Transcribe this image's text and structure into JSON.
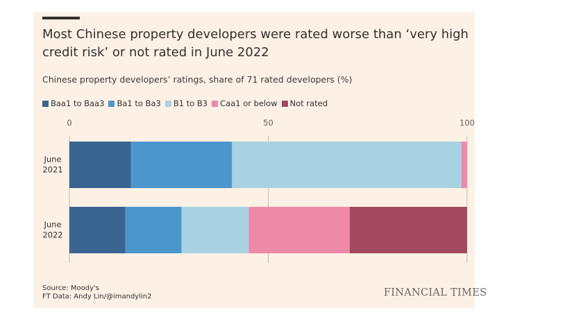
{
  "chart_data": {
    "type": "bar",
    "orientation": "horizontal",
    "stacked": true,
    "title": "Most Chinese property developers were rated worse than ‘very high credit risk’ or not rated in June 2022",
    "subtitle": "Chinese property developers’ ratings, share of 71 rated developers (%)",
    "categories": [
      {
        "line1": "June",
        "line2": "2021"
      },
      {
        "line1": "June",
        "line2": "2022"
      }
    ],
    "series": [
      {
        "name": "Baa1 to Baa3",
        "color": "#3a6490",
        "values": [
          15.5,
          14.1
        ]
      },
      {
        "name": "Ba1 to Ba3",
        "color": "#4b97cc",
        "values": [
          25.4,
          14.1
        ]
      },
      {
        "name": "B1 to B3",
        "color": "#a8d2e2",
        "values": [
          57.7,
          16.9
        ]
      },
      {
        "name": "Caa1 or below",
        "color": "#ee89aa",
        "values": [
          1.4,
          25.4
        ]
      },
      {
        "name": "Not rated",
        "color": "#a3495e",
        "values": [
          0,
          29.5
        ]
      }
    ],
    "xlim": [
      0,
      100
    ],
    "xticks": [
      "0",
      "50",
      "100"
    ],
    "grid": true,
    "legend": "top"
  },
  "footer": {
    "source": "Source: Moody's",
    "credit": "FT Data: Andy Lin/@imandylin2",
    "brand": "FINANCIAL TIMES"
  }
}
